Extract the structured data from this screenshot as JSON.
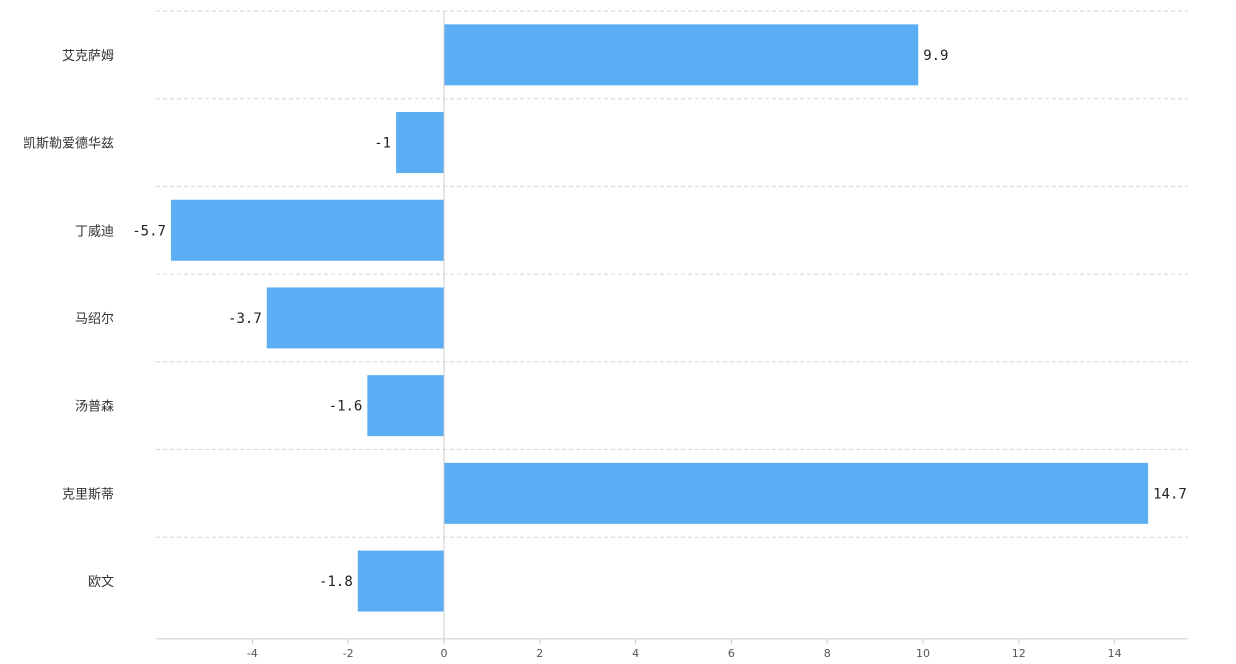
{
  "chart_data": {
    "type": "bar",
    "orientation": "horizontal",
    "categories": [
      "艾克萨姆",
      "凯斯勒爱德华兹",
      "丁威迪",
      "马绍尔",
      "汤普森",
      "克里斯蒂",
      "欧文"
    ],
    "values": [
      9.9,
      -1,
      -5.7,
      -3.7,
      -1.6,
      14.7,
      -1.8
    ],
    "value_labels": [
      "9.9",
      "-1",
      "-5.7",
      "-3.7",
      "-1.6",
      "14.7",
      "-1.8"
    ],
    "xticks": [
      -4,
      -2,
      0,
      2,
      4,
      6,
      8,
      10,
      12,
      14
    ],
    "xtick_labels": [
      "-4",
      "-2",
      "0",
      "2",
      "4",
      "6",
      "8",
      "10",
      "12",
      "14"
    ],
    "xlim": [
      -6,
      15.5
    ],
    "grid": "horizontal-dashed",
    "bar_color": "#5caef4"
  }
}
